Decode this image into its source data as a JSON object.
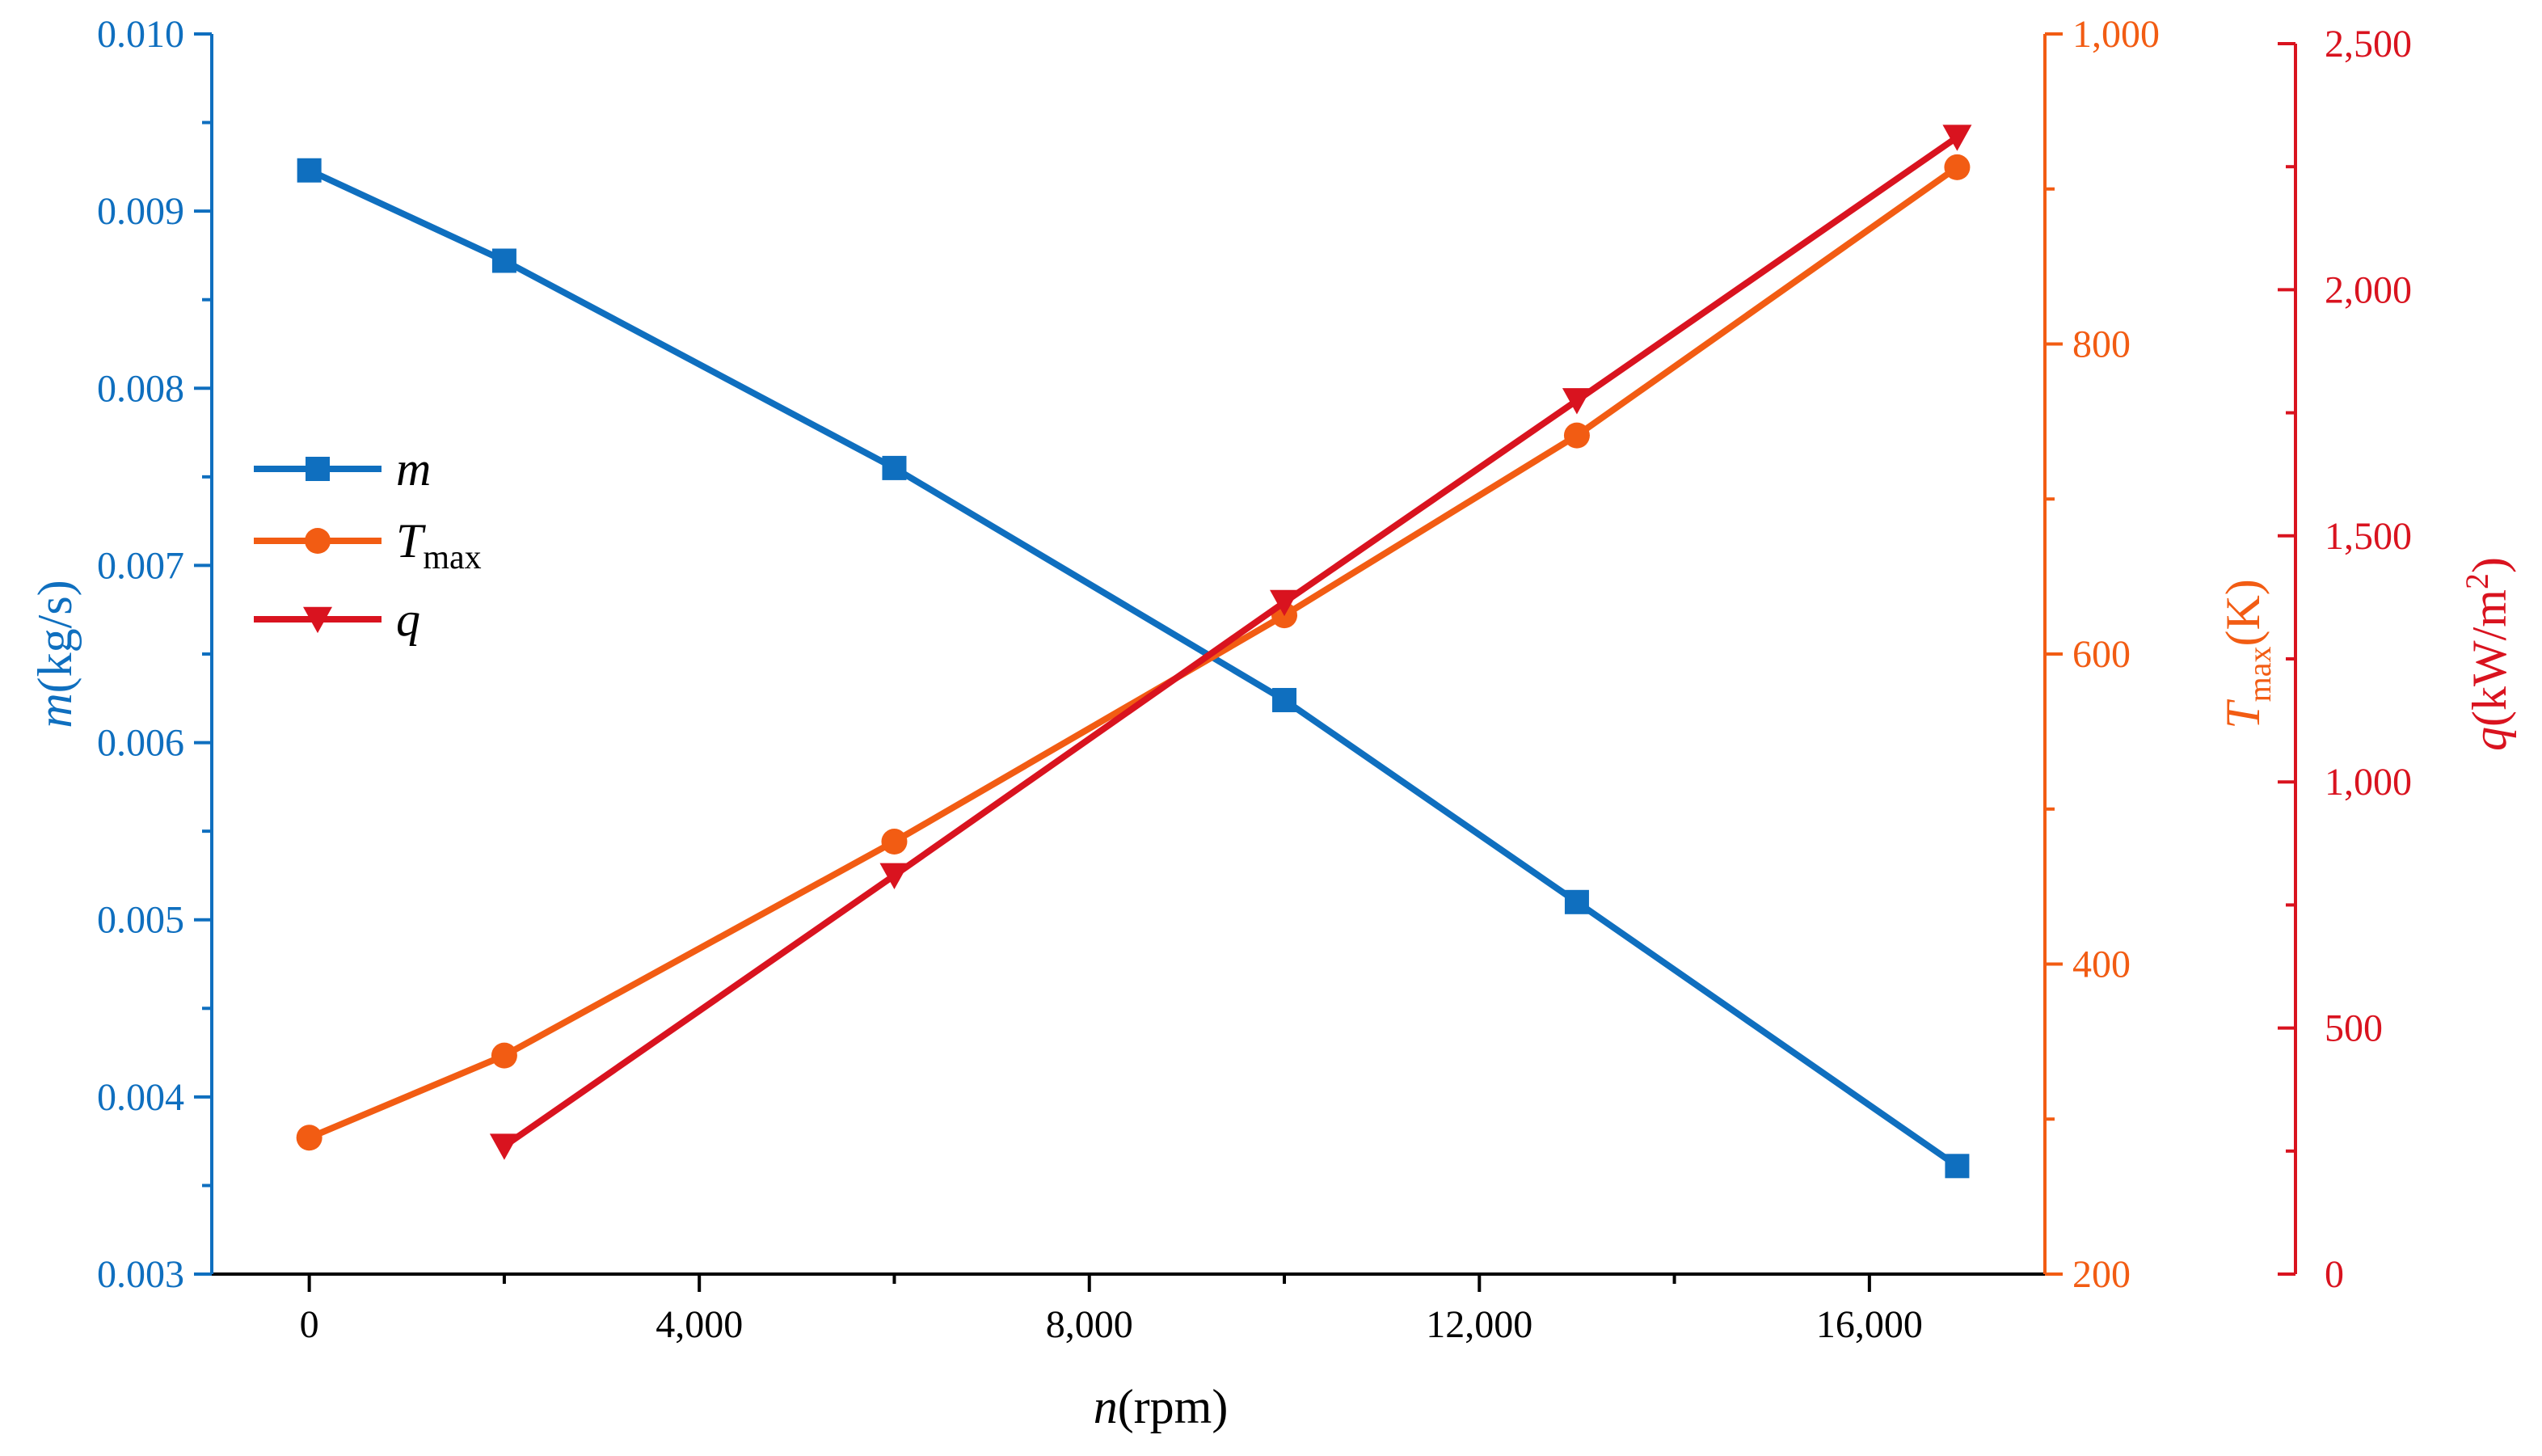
{
  "colors": {
    "m": "#0f6fbf",
    "Tmax": "#f25c13",
    "q": "#d9131f",
    "axis_black": "#000000"
  },
  "chart_data": {
    "type": "line",
    "x_axis": {
      "label_italic": "n",
      "label_rest": "(rpm)",
      "range": [
        -1000,
        17800
      ],
      "ticks": [
        0,
        4000,
        8000,
        12000,
        16000
      ],
      "tick_labels": [
        "0",
        "4,000",
        "8,000",
        "12,000",
        "16,000"
      ],
      "minor_ticks": [
        2000,
        6000,
        10000,
        14000
      ]
    },
    "y_axes": [
      {
        "id": "m",
        "label_italic": "m",
        "label_rest": "(kg/s)",
        "range": [
          0.003,
          0.01
        ],
        "ticks": [
          0.003,
          0.004,
          0.005,
          0.006,
          0.007,
          0.008,
          0.009,
          0.01
        ],
        "tick_labels": [
          "0.003",
          "0.004",
          "0.005",
          "0.006",
          "0.007",
          "0.008",
          "0.009",
          "0.010"
        ],
        "minor_ticks": [
          0.0035,
          0.0045,
          0.0055,
          0.0065,
          0.0075,
          0.0085,
          0.0095
        ]
      },
      {
        "id": "Tmax",
        "label_italic": "T",
        "label_sub": "max",
        "label_rest": "(K)",
        "range": [
          200,
          1000
        ],
        "ticks": [
          200,
          400,
          600,
          800,
          1000
        ],
        "tick_labels": [
          "200",
          "400",
          "600",
          "800",
          "1,000"
        ],
        "minor_ticks": [
          300,
          500,
          700,
          900
        ]
      },
      {
        "id": "q",
        "label_italic": "q",
        "label_rest": "(kW/m",
        "label_sup": "2",
        "label_end": ")",
        "range": [
          0,
          2500
        ],
        "ticks": [
          0,
          500,
          1000,
          1500,
          2000,
          2500
        ],
        "tick_labels": [
          "0",
          "500",
          "1,000",
          "1,500",
          "2,000",
          "2,500"
        ],
        "minor_ticks": [
          250,
          750,
          1250,
          1750,
          2250
        ]
      }
    ],
    "series": [
      {
        "id": "m",
        "name_italic": "m",
        "marker": "square",
        "axis": "m",
        "x": [
          0,
          2000,
          6000,
          10000,
          13000,
          16900
        ],
        "y": [
          0.00923,
          0.00872,
          0.00755,
          0.00624,
          0.0051,
          0.00361
        ]
      },
      {
        "id": "Tmax",
        "name_italic": "T",
        "name_sub": "max",
        "marker": "circle",
        "axis": "Tmax",
        "x": [
          0,
          2000,
          6000,
          10000,
          13000,
          16900
        ],
        "y": [
          288,
          341,
          479,
          625,
          741,
          914
        ]
      },
      {
        "id": "q",
        "name_italic": "q",
        "marker": "triangle-down",
        "axis": "q",
        "x": [
          2000,
          6000,
          10000,
          13000,
          16900
        ],
        "y": [
          260,
          810,
          1365,
          1775,
          2310
        ]
      }
    ],
    "legend_position": "middle-left",
    "grid": false
  }
}
